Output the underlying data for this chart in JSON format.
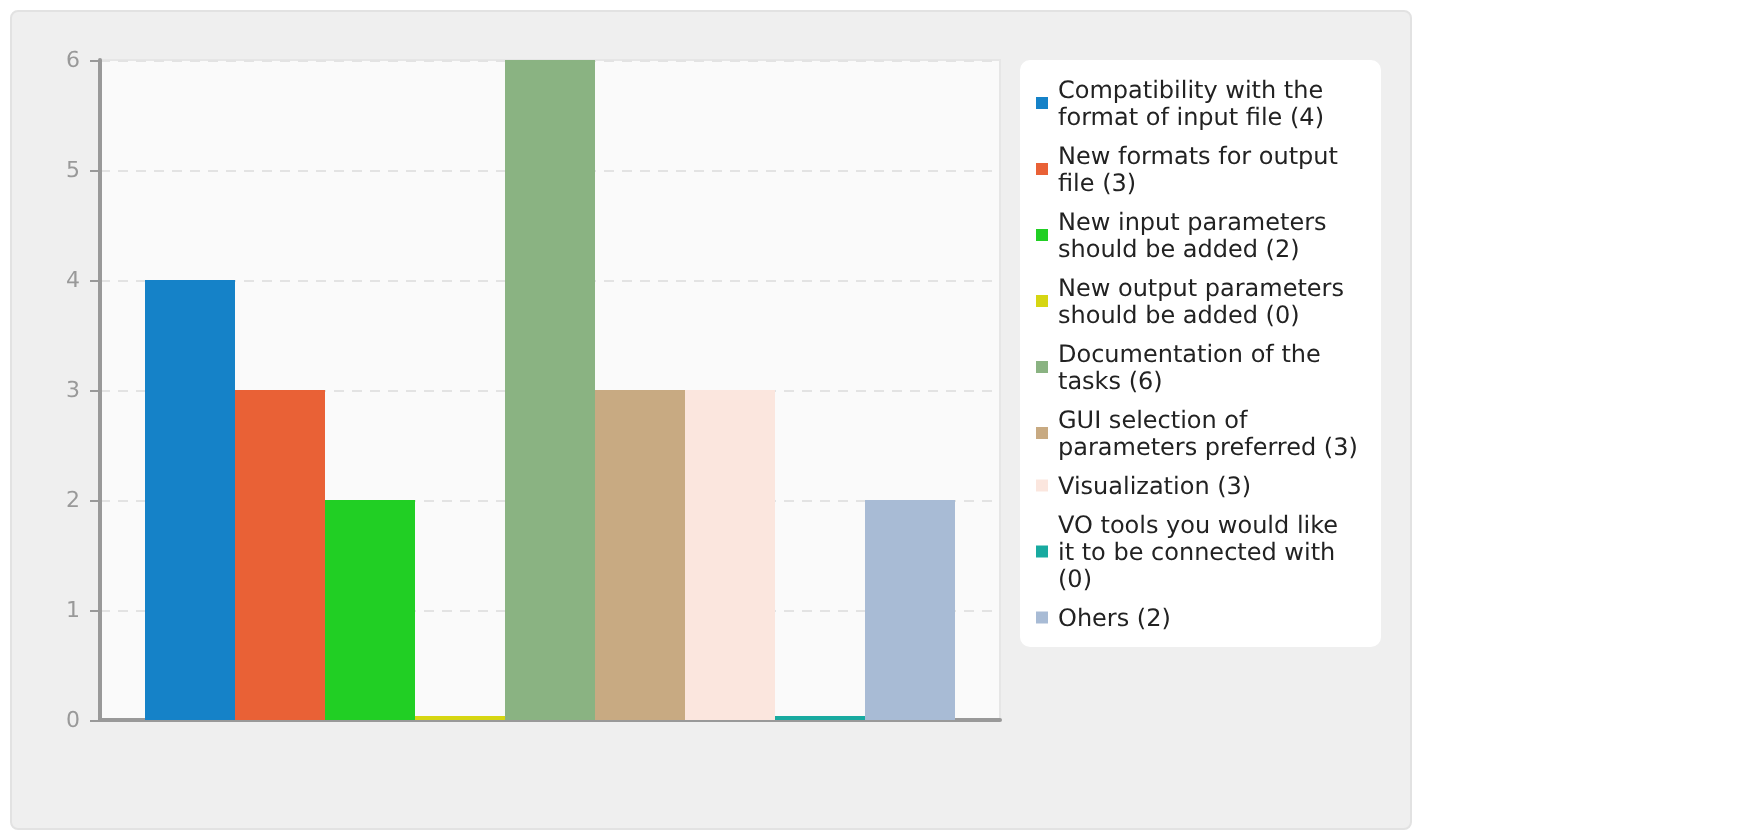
{
  "chart_data": {
    "type": "bar",
    "categories": [
      null
    ],
    "series": [
      {
        "name": "Compatibility with the format of input file (4)",
        "color": "#1582c8",
        "values": [
          4
        ]
      },
      {
        "name": "New formats for output file (3)",
        "color": "#e96136",
        "values": [
          3
        ]
      },
      {
        "name": "New input parameters should be added (2)",
        "color": "#21cf24",
        "values": [
          2
        ]
      },
      {
        "name": "New output parameters should be added (0)",
        "color": "#d6d612",
        "values": [
          0
        ]
      },
      {
        "name": "Documentation of the tasks (6)",
        "color": "#8ab382",
        "values": [
          6
        ]
      },
      {
        "name": "GUI selection of parameters preferred (3)",
        "color": "#c8aa82",
        "values": [
          3
        ]
      },
      {
        "name": "Visualization (3)",
        "color": "#fbe6de",
        "values": [
          3
        ]
      },
      {
        "name": "VO tools you would like it to be connected with (0)",
        "color": "#18aaa0",
        "values": [
          0
        ]
      },
      {
        "name": "Ohers (2)",
        "color": "#a8bbd5",
        "values": [
          2
        ]
      }
    ],
    "ylim": [
      0,
      6
    ],
    "yticks": [
      0,
      1,
      2,
      3,
      4,
      5,
      6
    ],
    "grid": "y",
    "legend": "right",
    "tick_labels": "y"
  }
}
